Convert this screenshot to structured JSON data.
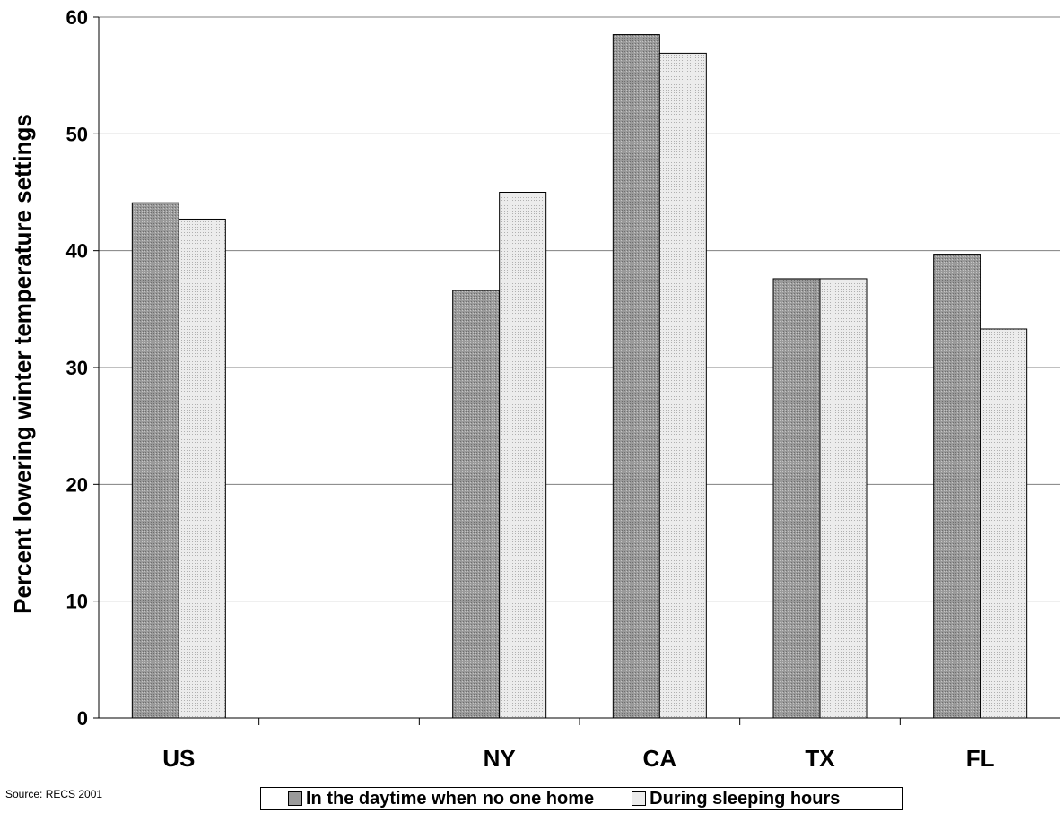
{
  "chart_data": {
    "type": "bar",
    "categories": [
      "US",
      "",
      "NY",
      "CA",
      "TX",
      "FL"
    ],
    "series": [
      {
        "name": "In the daytime when no one home",
        "values": [
          44.1,
          null,
          36.6,
          58.5,
          37.6,
          39.7
        ],
        "color": "#9a9a9a"
      },
      {
        "name": "During sleeping hours",
        "values": [
          42.7,
          null,
          45.0,
          56.9,
          37.6,
          33.3
        ],
        "color": "#ececec"
      }
    ],
    "title": "",
    "xlabel": "",
    "ylabel": "Percent lowering winter temperature settings",
    "ylim": [
      0,
      60
    ],
    "yticks": [
      0,
      10,
      20,
      30,
      40,
      50,
      60
    ],
    "grid": true,
    "legend_position": "bottom"
  },
  "source_note": "Source: RECS 2001"
}
